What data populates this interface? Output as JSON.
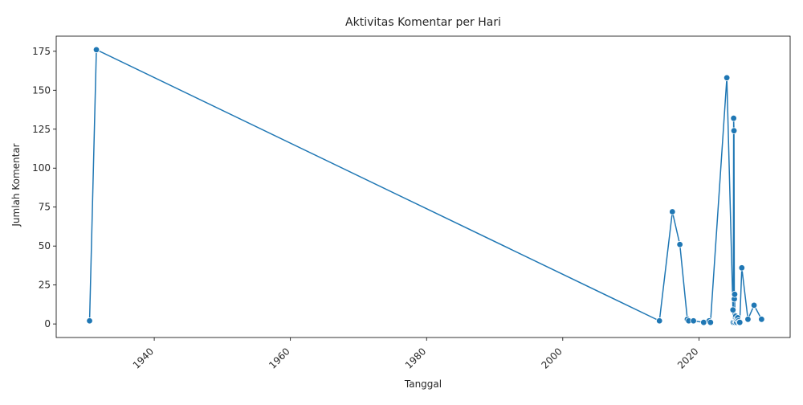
{
  "chart_data": {
    "type": "line",
    "title": "Aktivitas Komentar per Hari",
    "xlabel": "Tanggal",
    "ylabel": "Jumlah Komentar",
    "xlim": [
      1925.6,
      2033.4
    ],
    "ylim": [
      -8.7,
      184.7
    ],
    "x_ticks": [
      1940,
      1960,
      1980,
      2000,
      2020
    ],
    "y_ticks": [
      0,
      25,
      50,
      75,
      100,
      125,
      150,
      175
    ],
    "grid": false,
    "legend": "none",
    "color": "#1f77b4",
    "series": [
      {
        "x": [
          1930.5,
          1931.5,
          2014.2,
          2016.1,
          2017.2,
          2018.3,
          2018.5,
          2019.2,
          2020.7,
          2021.5,
          2021.7,
          2024.1,
          2025.0,
          2025.05,
          2025.1,
          2025.15,
          2025.2,
          2025.25,
          2025.3,
          2025.35,
          2025.4,
          2025.45,
          2025.5,
          2025.55,
          2025.6,
          2025.7,
          2025.8,
          2025.9,
          2026.0,
          2026.3,
          2027.2,
          2028.1,
          2029.2
        ],
        "y": [
          2,
          176,
          2,
          72,
          51,
          3,
          2,
          2,
          1,
          2,
          1,
          158,
          9,
          1,
          132,
          124,
          16,
          19,
          1,
          2,
          5,
          3,
          2,
          1,
          3,
          4,
          2,
          1,
          1,
          36,
          3,
          12,
          3
        ]
      }
    ]
  }
}
